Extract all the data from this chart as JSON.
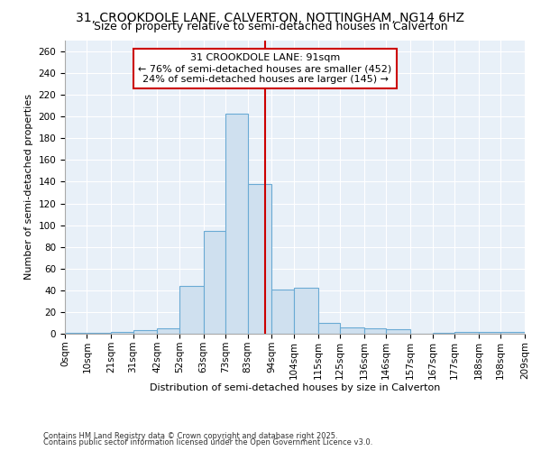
{
  "title1": "31, CROOKDOLE LANE, CALVERTON, NOTTINGHAM, NG14 6HZ",
  "title2": "Size of property relative to semi-detached houses in Calverton",
  "xlabel": "Distribution of semi-detached houses by size in Calverton",
  "ylabel": "Number of semi-detached properties",
  "footnote1": "Contains HM Land Registry data © Crown copyright and database right 2025.",
  "footnote2": "Contains public sector information licensed under the Open Government Licence v3.0.",
  "bin_labels": [
    "0sqm",
    "10sqm",
    "21sqm",
    "31sqm",
    "42sqm",
    "52sqm",
    "63sqm",
    "73sqm",
    "83sqm",
    "94sqm",
    "104sqm",
    "115sqm",
    "125sqm",
    "136sqm",
    "146sqm",
    "157sqm",
    "167sqm",
    "177sqm",
    "188sqm",
    "198sqm",
    "209sqm"
  ],
  "bar_values": [
    1,
    1,
    2,
    3,
    5,
    44,
    95,
    203,
    138,
    41,
    42,
    10,
    6,
    5,
    4,
    0,
    1,
    2,
    2,
    2
  ],
  "bin_edges": [
    0,
    10,
    21,
    31,
    42,
    52,
    63,
    73,
    83,
    94,
    104,
    115,
    125,
    136,
    146,
    157,
    167,
    177,
    188,
    198,
    209
  ],
  "property_size": 91,
  "annotation_title": "31 CROOKDOLE LANE: 91sqm",
  "annotation_line1": "← 76% of semi-detached houses are smaller (452)",
  "annotation_line2": "24% of semi-detached houses are larger (145) →",
  "bar_color": "#cfe0ef",
  "bar_edge_color": "#6aaad4",
  "vline_color": "#cc0000",
  "annotation_box_edge_color": "#cc0000",
  "plot_bg_color": "#e8f0f8",
  "fig_bg_color": "#ffffff",
  "grid_color": "#ffffff",
  "ylim": [
    0,
    270
  ],
  "yticks": [
    0,
    20,
    40,
    60,
    80,
    100,
    120,
    140,
    160,
    180,
    200,
    220,
    240,
    260
  ],
  "title1_fontsize": 10,
  "title2_fontsize": 9,
  "axis_label_fontsize": 8,
  "tick_fontsize": 7.5,
  "annotation_fontsize": 8,
  "footnote_fontsize": 6
}
